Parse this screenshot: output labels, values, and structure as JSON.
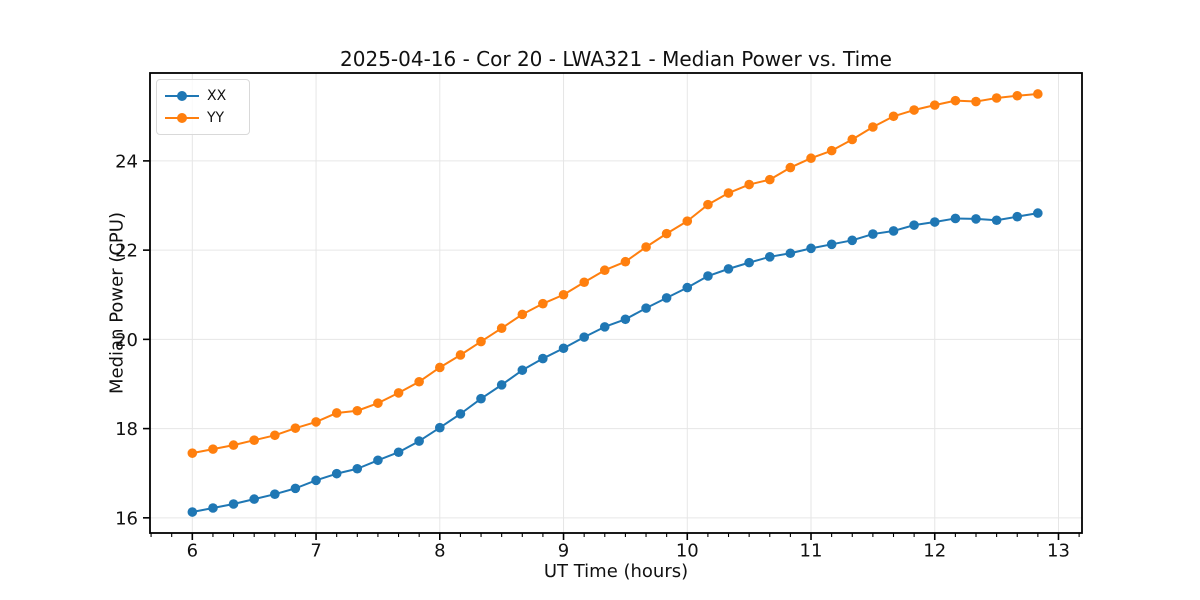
{
  "figure": {
    "title": "2025-04-16 - Cor 20 - LWA321 - Median Power vs. Time",
    "xlabel": "UT Time (hours)",
    "ylabel": "Median Power (CPU)"
  },
  "legend": {
    "items": [
      {
        "label": "XX",
        "color": "#1f77b4"
      },
      {
        "label": "YY",
        "color": "#ff7f0e"
      }
    ]
  },
  "colors": {
    "grid": "#e6e6e6",
    "spine": "#000000",
    "tick": "#000000",
    "text": "#111111",
    "background": "#ffffff"
  },
  "chart_data": {
    "type": "line",
    "title": "2025-04-16 - Cor 20 - LWA321 - Median Power vs. Time",
    "xlabel": "UT Time (hours)",
    "ylabel": "Median Power (CPU)",
    "grid": true,
    "marker": "o",
    "legend_position": "upper left",
    "xlim": [
      5.658,
      13.19
    ],
    "ylim": [
      15.66,
      25.97
    ],
    "x_ticks": [
      6,
      7,
      8,
      9,
      10,
      11,
      12,
      13
    ],
    "y_ticks": [
      16,
      18,
      20,
      22,
      24
    ],
    "x_minor_step": 0.1667,
    "x": [
      6.0,
      6.167,
      6.333,
      6.5,
      6.667,
      6.833,
      7.0,
      7.167,
      7.333,
      7.5,
      7.667,
      7.833,
      8.0,
      8.167,
      8.333,
      8.5,
      8.667,
      8.833,
      9.0,
      9.167,
      9.333,
      9.5,
      9.667,
      9.833,
      10.0,
      10.167,
      10.333,
      10.5,
      10.667,
      10.833,
      11.0,
      11.167,
      11.333,
      11.5,
      11.667,
      11.833,
      12.0,
      12.167,
      12.333,
      12.5,
      12.667,
      12.833
    ],
    "series": [
      {
        "name": "XX",
        "color": "#1f77b4",
        "values": [
          16.13,
          16.22,
          16.31,
          16.42,
          16.53,
          16.66,
          16.84,
          16.99,
          17.1,
          17.29,
          17.47,
          17.72,
          18.02,
          18.33,
          18.67,
          18.98,
          19.31,
          19.57,
          19.8,
          20.05,
          20.28,
          20.45,
          20.7,
          20.93,
          21.16,
          21.42,
          21.58,
          21.72,
          21.85,
          21.93,
          22.04,
          22.13,
          22.22,
          22.36,
          22.43,
          22.56,
          22.63,
          22.71,
          22.7,
          22.67,
          22.75,
          22.83
        ]
      },
      {
        "name": "YY",
        "color": "#ff7f0e",
        "values": [
          17.45,
          17.54,
          17.63,
          17.74,
          17.85,
          18.01,
          18.15,
          18.35,
          18.4,
          18.57,
          18.8,
          19.05,
          19.37,
          19.65,
          19.95,
          20.25,
          20.56,
          20.8,
          21.0,
          21.28,
          21.55,
          21.74,
          22.07,
          22.37,
          22.65,
          23.02,
          23.28,
          23.47,
          23.58,
          23.85,
          24.06,
          24.23,
          24.48,
          24.76,
          25.0,
          25.14,
          25.25,
          25.35,
          25.33,
          25.41,
          25.46,
          25.5
        ]
      }
    ]
  }
}
